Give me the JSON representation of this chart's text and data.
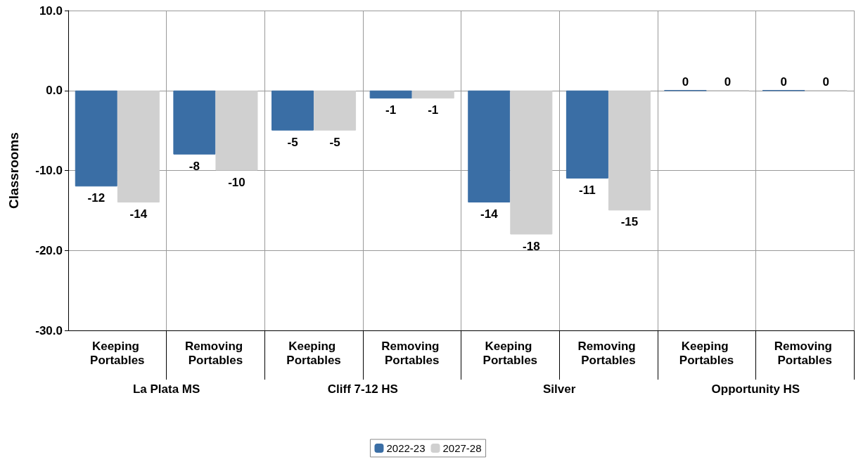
{
  "chart_data": {
    "type": "bar",
    "ylabel": "Classrooms",
    "categories": [
      "Keeping Portables",
      "Removing Portables",
      "Keeping Portables",
      "Removing Portables",
      "Keeping Portables",
      "Removing Portables",
      "Keeping Portables",
      "Removing Portables"
    ],
    "annotations": [
      "La Plata MS",
      "Cliff 7-12 HS",
      "Silver",
      "Opportunity HS"
    ],
    "series": [
      {
        "name": "2022-23",
        "color": "#3a6ea5",
        "values": [
          -12,
          -8,
          -5,
          -1,
          -14,
          -11,
          0,
          0
        ]
      },
      {
        "name": "2027-28",
        "color": "#d0d0d0",
        "values": [
          -14,
          -10,
          -5,
          -1,
          -18,
          -15,
          0,
          0
        ]
      }
    ],
    "ylim": [
      -30,
      10
    ],
    "yticks": [
      {
        "value": -30,
        "label": "-30.0"
      },
      {
        "value": -20,
        "label": "-20.0"
      },
      {
        "value": -10,
        "label": "-10.0"
      },
      {
        "value": 0,
        "label": "0.0"
      },
      {
        "value": 10,
        "label": "10.0"
      }
    ],
    "grid": true,
    "data_labels": true,
    "legend": "bottom"
  }
}
